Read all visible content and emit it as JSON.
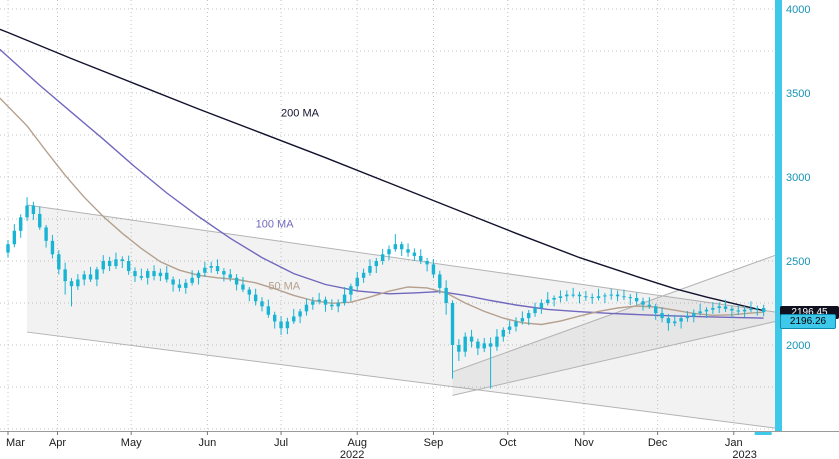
{
  "chart_data": {
    "type": "candlestick",
    "title": "",
    "last_price": 2196.26,
    "last_price_label": "2196.26",
    "secondary_price_label": "2196.45",
    "candle_color": "#17b4d4",
    "axis_strip_color": "#3ec9ea",
    "grid_color": "#c4c4c4",
    "channel_fill": "rgba(130,130,130,0.10)",
    "channel_stroke": "#b3b3b3",
    "y_axis": {
      "tick_labels": [
        4000,
        3500,
        3000,
        2500,
        2000
      ],
      "grid_min": 1500,
      "grid_max": 4000,
      "grid_step": 250,
      "label_color": "#1893b8"
    },
    "x_axis": {
      "month_ticks": [
        {
          "label": "Mar",
          "i": 0
        },
        {
          "label": "Apr",
          "i": 7.8
        },
        {
          "label": "May",
          "i": 19.4
        },
        {
          "label": "Jun",
          "i": 31.4
        },
        {
          "label": "Jul",
          "i": 43
        },
        {
          "label": "Aug",
          "i": 55
        },
        {
          "label": "Sep",
          "i": 67
        },
        {
          "label": "Oct",
          "i": 78.7
        },
        {
          "label": "Nov",
          "i": 90.7
        },
        {
          "label": "Dec",
          "i": 102.3
        },
        {
          "label": "Jan",
          "i": 114.3
        }
      ],
      "year_labels": [
        {
          "label": "2022",
          "i": 54.2
        },
        {
          "label": "2023",
          "i": 116
        }
      ],
      "label_color": "#1a1a1a"
    },
    "first_open": 2550,
    "candles_hlc": [
      [
        2625,
        2520,
        2600
      ],
      [
        2720,
        2582,
        2680
      ],
      [
        2778,
        2638,
        2760
      ],
      [
        2880,
        2738,
        2830
      ],
      [
        2852,
        2745,
        2780
      ],
      [
        2825,
        2685,
        2700
      ],
      [
        2715,
        2580,
        2620
      ],
      [
        2655,
        2515,
        2540
      ],
      [
        2565,
        2420,
        2450
      ],
      [
        2490,
        2300,
        2380
      ],
      [
        2398,
        2230,
        2350
      ],
      [
        2422,
        2328,
        2390
      ],
      [
        2442,
        2355,
        2420
      ],
      [
        2465,
        2375,
        2390
      ],
      [
        2465,
        2350,
        2450
      ],
      [
        2535,
        2425,
        2500
      ],
      [
        2525,
        2440,
        2470
      ],
      [
        2550,
        2452,
        2510
      ],
      [
        2528,
        2458,
        2500
      ],
      [
        2532,
        2418,
        2440
      ],
      [
        2462,
        2375,
        2410
      ],
      [
        2455,
        2385,
        2400
      ],
      [
        2455,
        2360,
        2440
      ],
      [
        2475,
        2385,
        2410
      ],
      [
        2455,
        2380,
        2430
      ],
      [
        2470,
        2372,
        2390
      ],
      [
        2408,
        2318,
        2360
      ],
      [
        2392,
        2318,
        2340
      ],
      [
        2392,
        2305,
        2370
      ],
      [
        2445,
        2355,
        2400
      ],
      [
        2445,
        2360,
        2430
      ],
      [
        2495,
        2405,
        2460
      ],
      [
        2495,
        2430,
        2470
      ],
      [
        2510,
        2422,
        2440
      ],
      [
        2458,
        2378,
        2420
      ],
      [
        2452,
        2378,
        2400
      ],
      [
        2422,
        2325,
        2360
      ],
      [
        2405,
        2315,
        2330
      ],
      [
        2345,
        2260,
        2300
      ],
      [
        2335,
        2235,
        2260
      ],
      [
        2285,
        2200,
        2230
      ],
      [
        2270,
        2162,
        2180
      ],
      [
        2198,
        2098,
        2140
      ],
      [
        2172,
        2060,
        2100
      ],
      [
        2162,
        2065,
        2140
      ],
      [
        2215,
        2125,
        2170
      ],
      [
        2215,
        2130,
        2200
      ],
      [
        2275,
        2175,
        2240
      ],
      [
        2285,
        2210,
        2260
      ],
      [
        2310,
        2242,
        2270
      ],
      [
        2288,
        2198,
        2240
      ],
      [
        2272,
        2208,
        2230
      ],
      [
        2272,
        2195,
        2250
      ],
      [
        2345,
        2235,
        2300
      ],
      [
        2365,
        2260,
        2350
      ],
      [
        2435,
        2325,
        2400
      ],
      [
        2455,
        2370,
        2430
      ],
      [
        2510,
        2412,
        2470
      ],
      [
        2518,
        2428,
        2500
      ],
      [
        2572,
        2478,
        2540
      ],
      [
        2592,
        2505,
        2570
      ],
      [
        2660,
        2555,
        2600
      ],
      [
        2615,
        2530,
        2570
      ],
      [
        2605,
        2525,
        2550
      ],
      [
        2575,
        2500,
        2530
      ],
      [
        2570,
        2482,
        2500
      ],
      [
        2518,
        2438,
        2480
      ],
      [
        2512,
        2398,
        2420
      ],
      [
        2442,
        2305,
        2340
      ],
      [
        2385,
        2180,
        2250
      ],
      [
        2265,
        1800,
        2000
      ],
      [
        2035,
        1905,
        1960
      ],
      [
        2075,
        1930,
        2050
      ],
      [
        2090,
        1985,
        2020
      ],
      [
        2038,
        1940,
        1980
      ],
      [
        2042,
        1958,
        2010
      ],
      [
        2045,
        1740,
        1990
      ],
      [
        2095,
        1965,
        2050
      ],
      [
        2105,
        2020,
        2090
      ],
      [
        2145,
        2065,
        2110
      ],
      [
        2165,
        2080,
        2140
      ],
      [
        2200,
        2122,
        2160
      ],
      [
        2208,
        2118,
        2190
      ],
      [
        2252,
        2168,
        2220
      ],
      [
        2272,
        2185,
        2250
      ],
      [
        2315,
        2235,
        2270
      ],
      [
        2295,
        2230,
        2280
      ],
      [
        2325,
        2255,
        2290
      ],
      [
        2325,
        2260,
        2300
      ],
      [
        2340,
        2282,
        2300
      ],
      [
        2318,
        2248,
        2290
      ],
      [
        2322,
        2263,
        2285
      ],
      [
        2307,
        2245,
        2280
      ],
      [
        2335,
        2265,
        2290
      ],
      [
        2310,
        2250,
        2295
      ],
      [
        2335,
        2270,
        2300
      ],
      [
        2325,
        2260,
        2290
      ],
      [
        2330,
        2267,
        2285
      ],
      [
        2303,
        2238,
        2280
      ],
      [
        2312,
        2238,
        2260
      ],
      [
        2282,
        2205,
        2240
      ],
      [
        2285,
        2215,
        2230
      ],
      [
        2245,
        2150,
        2190
      ],
      [
        2225,
        2135,
        2160
      ],
      [
        2185,
        2085,
        2130
      ],
      [
        2180,
        2112,
        2140
      ],
      [
        2178,
        2098,
        2160
      ],
      [
        2202,
        2138,
        2170
      ],
      [
        2212,
        2135,
        2190
      ],
      [
        2245,
        2175,
        2200
      ],
      [
        2225,
        2160,
        2210
      ],
      [
        2255,
        2185,
        2220
      ],
      [
        2255,
        2190,
        2230
      ],
      [
        2270,
        2197,
        2215
      ],
      [
        2233,
        2163,
        2205
      ],
      [
        2237,
        2178,
        2200
      ],
      [
        2232,
        2165,
        2210
      ],
      [
        2260,
        2195,
        2215
      ],
      [
        2235,
        2175,
        2220
      ],
      [
        2240,
        2171,
        2196.26
      ]
    ],
    "moving_averages": [
      {
        "name": "200 MA",
        "color": "#12122e",
        "label_pos": [
          43,
          3360
        ],
        "points": [
          [
            -1.3,
            3880
          ],
          [
            0,
            3860
          ],
          [
            10,
            3705
          ],
          [
            20,
            3555
          ],
          [
            30,
            3405
          ],
          [
            40,
            3260
          ],
          [
            50,
            3115
          ],
          [
            60,
            2965
          ],
          [
            70,
            2815
          ],
          [
            80,
            2665
          ],
          [
            90,
            2520
          ],
          [
            100,
            2395
          ],
          [
            105,
            2335
          ],
          [
            110,
            2285
          ],
          [
            115,
            2240
          ],
          [
            119,
            2205
          ]
        ]
      },
      {
        "name": "100 MA",
        "color": "#7168bd",
        "label_pos": [
          39,
          2700
        ],
        "points": [
          [
            -1.3,
            3760
          ],
          [
            5,
            3545
          ],
          [
            10,
            3385
          ],
          [
            15,
            3225
          ],
          [
            20,
            3060
          ],
          [
            25,
            2905
          ],
          [
            30,
            2765
          ],
          [
            35,
            2635
          ],
          [
            40,
            2520
          ],
          [
            45,
            2425
          ],
          [
            50,
            2360
          ],
          [
            55,
            2322
          ],
          [
            60,
            2305
          ],
          [
            64,
            2310
          ],
          [
            68,
            2318
          ],
          [
            72,
            2295
          ],
          [
            76,
            2265
          ],
          [
            80,
            2238
          ],
          [
            85,
            2212
          ],
          [
            90,
            2198
          ],
          [
            95,
            2188
          ],
          [
            100,
            2180
          ],
          [
            105,
            2173
          ],
          [
            110,
            2168
          ],
          [
            115,
            2163
          ],
          [
            119,
            2160
          ]
        ]
      },
      {
        "name": "50 MA",
        "color": "#b5a08e",
        "label_pos": [
          41,
          2330
        ],
        "points": [
          [
            -1.3,
            3470
          ],
          [
            3,
            3305
          ],
          [
            6,
            3155
          ],
          [
            9,
            3010
          ],
          [
            12,
            2880
          ],
          [
            15,
            2765
          ],
          [
            18,
            2665
          ],
          [
            21,
            2575
          ],
          [
            24,
            2495
          ],
          [
            27,
            2445
          ],
          [
            30,
            2415
          ],
          [
            33,
            2400
          ],
          [
            36,
            2390
          ],
          [
            39,
            2370
          ],
          [
            42,
            2335
          ],
          [
            45,
            2295
          ],
          [
            48,
            2265
          ],
          [
            51,
            2248
          ],
          [
            54,
            2255
          ],
          [
            57,
            2285
          ],
          [
            60,
            2320
          ],
          [
            63,
            2345
          ],
          [
            66,
            2340
          ],
          [
            69,
            2310
          ],
          [
            72,
            2250
          ],
          [
            75,
            2200
          ],
          [
            78,
            2160
          ],
          [
            81,
            2132
          ],
          [
            84,
            2122
          ],
          [
            87,
            2142
          ],
          [
            90,
            2172
          ],
          [
            93,
            2200
          ],
          [
            96,
            2220
          ],
          [
            99,
            2232
          ],
          [
            102,
            2226
          ],
          [
            105,
            2207
          ],
          [
            108,
            2188
          ],
          [
            111,
            2177
          ],
          [
            114,
            2180
          ],
          [
            117,
            2190
          ],
          [
            119,
            2196
          ]
        ]
      }
    ],
    "channels": [
      {
        "polygon": [
          [
            3,
            2833
          ],
          [
            122,
            2190
          ],
          [
            122,
            1500
          ],
          [
            3,
            2077
          ]
        ],
        "top": [
          [
            3,
            2833
          ],
          [
            122,
            2190
          ]
        ],
        "bottom": [
          [
            3,
            2077
          ],
          [
            122,
            1500
          ]
        ]
      },
      {
        "polygon": [
          [
            70,
            1840
          ],
          [
            122,
            2550
          ],
          [
            122,
            2150
          ],
          [
            70,
            1700
          ]
        ],
        "top": [
          [
            70,
            1840
          ],
          [
            122,
            2550
          ]
        ],
        "bottom": [
          [
            70,
            1700
          ],
          [
            122,
            2150
          ]
        ]
      }
    ]
  }
}
